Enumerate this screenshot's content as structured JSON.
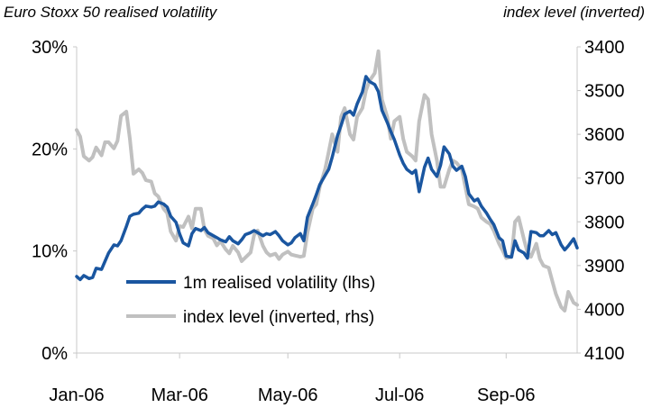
{
  "chart_data": {
    "type": "line",
    "title_left": "Euro Stoxx 50 realised volatility",
    "title_right": "index level (inverted)",
    "x_ticks": [
      "Jan-06",
      "Mar-06",
      "May-06",
      "Jul-06",
      "Sep-06"
    ],
    "y_left": {
      "ticks": [
        "0%",
        "10%",
        "20%",
        "30%"
      ],
      "range": [
        0,
        30
      ],
      "unit": "%"
    },
    "y_right": {
      "ticks": [
        "3400",
        "3500",
        "3600",
        "3700",
        "3800",
        "3900",
        "4000",
        "4100"
      ],
      "range": [
        3400,
        4100
      ],
      "inverted": true
    },
    "legend_position": "lower-left",
    "series": [
      {
        "name": "1m realised volatility (lhs)",
        "axis": "left",
        "color": "#1a56a0",
        "points": [
          [
            "2006-01-02",
            7.5
          ],
          [
            "2006-01-04",
            7.2
          ],
          [
            "2006-01-06",
            7.6
          ],
          [
            "2006-01-09",
            7.3
          ],
          [
            "2006-01-11",
            7.4
          ],
          [
            "2006-01-13",
            8.3
          ],
          [
            "2006-01-16",
            8.2
          ],
          [
            "2006-01-18",
            9.0
          ],
          [
            "2006-01-20",
            9.8
          ],
          [
            "2006-01-23",
            10.6
          ],
          [
            "2006-01-25",
            10.5
          ],
          [
            "2006-01-27",
            11.0
          ],
          [
            "2006-01-30",
            12.4
          ],
          [
            "2006-02-01",
            13.4
          ],
          [
            "2006-02-03",
            13.6
          ],
          [
            "2006-02-06",
            13.7
          ],
          [
            "2006-02-08",
            14.1
          ],
          [
            "2006-02-10",
            14.4
          ],
          [
            "2006-02-13",
            14.3
          ],
          [
            "2006-02-15",
            14.4
          ],
          [
            "2006-02-17",
            14.8
          ],
          [
            "2006-02-20",
            14.6
          ],
          [
            "2006-02-22",
            14.3
          ],
          [
            "2006-02-24",
            13.4
          ],
          [
            "2006-02-27",
            12.8
          ],
          [
            "2006-03-01",
            11.7
          ],
          [
            "2006-03-03",
            10.8
          ],
          [
            "2006-03-06",
            10.5
          ],
          [
            "2006-03-08",
            11.7
          ],
          [
            "2006-03-10",
            12.2
          ],
          [
            "2006-03-13",
            12.0
          ],
          [
            "2006-03-15",
            12.3
          ],
          [
            "2006-03-17",
            11.8
          ],
          [
            "2006-03-20",
            11.5
          ],
          [
            "2006-03-22",
            11.3
          ],
          [
            "2006-03-24",
            11.1
          ],
          [
            "2006-03-27",
            10.9
          ],
          [
            "2006-03-29",
            11.4
          ],
          [
            "2006-03-31",
            11.0
          ],
          [
            "2006-04-03",
            10.7
          ],
          [
            "2006-04-05",
            11.1
          ],
          [
            "2006-04-07",
            11.6
          ],
          [
            "2006-04-10",
            11.8
          ],
          [
            "2006-04-12",
            12.0
          ],
          [
            "2006-04-14",
            11.8
          ],
          [
            "2006-04-17",
            11.5
          ],
          [
            "2006-04-19",
            11.7
          ],
          [
            "2006-04-21",
            11.6
          ],
          [
            "2006-04-24",
            11.9
          ],
          [
            "2006-04-26",
            11.5
          ],
          [
            "2006-04-28",
            11.0
          ],
          [
            "2006-05-01",
            10.6
          ],
          [
            "2006-05-03",
            10.8
          ],
          [
            "2006-05-05",
            11.3
          ],
          [
            "2006-05-08",
            11.7
          ],
          [
            "2006-05-10",
            11.0
          ],
          [
            "2006-05-12",
            13.3
          ],
          [
            "2006-05-15",
            14.6
          ],
          [
            "2006-05-17",
            15.5
          ],
          [
            "2006-05-19",
            16.5
          ],
          [
            "2006-05-22",
            17.4
          ],
          [
            "2006-05-24",
            18.0
          ],
          [
            "2006-05-26",
            19.2
          ],
          [
            "2006-05-29",
            21.3
          ],
          [
            "2006-05-31",
            22.3
          ],
          [
            "2006-06-02",
            23.4
          ],
          [
            "2006-06-05",
            23.7
          ],
          [
            "2006-06-07",
            23.3
          ],
          [
            "2006-06-09",
            24.4
          ],
          [
            "2006-06-12",
            25.6
          ],
          [
            "2006-06-14",
            27.1
          ],
          [
            "2006-06-16",
            26.6
          ],
          [
            "2006-06-19",
            26.3
          ],
          [
            "2006-06-21",
            25.6
          ],
          [
            "2006-06-23",
            23.8
          ],
          [
            "2006-06-26",
            22.6
          ],
          [
            "2006-06-28",
            21.7
          ],
          [
            "2006-06-30",
            20.9
          ],
          [
            "2006-07-03",
            19.4
          ],
          [
            "2006-07-05",
            18.6
          ],
          [
            "2006-07-07",
            18.0
          ],
          [
            "2006-07-10",
            17.6
          ],
          [
            "2006-07-12",
            17.9
          ],
          [
            "2006-07-14",
            15.8
          ],
          [
            "2006-07-17",
            18.2
          ],
          [
            "2006-07-19",
            19.1
          ],
          [
            "2006-07-21",
            18.0
          ],
          [
            "2006-07-24",
            17.3
          ],
          [
            "2006-07-26",
            18.4
          ],
          [
            "2006-07-28",
            20.2
          ],
          [
            "2006-07-31",
            19.5
          ],
          [
            "2006-08-02",
            18.3
          ],
          [
            "2006-08-04",
            17.9
          ],
          [
            "2006-08-07",
            18.3
          ],
          [
            "2006-08-09",
            17.3
          ],
          [
            "2006-08-11",
            15.6
          ],
          [
            "2006-08-14",
            14.9
          ],
          [
            "2006-08-16",
            15.1
          ],
          [
            "2006-08-18",
            14.4
          ],
          [
            "2006-08-21",
            13.7
          ],
          [
            "2006-08-23",
            13.1
          ],
          [
            "2006-08-25",
            12.6
          ],
          [
            "2006-08-28",
            11.3
          ],
          [
            "2006-08-30",
            11.0
          ],
          [
            "2006-09-01",
            9.5
          ],
          [
            "2006-09-04",
            9.4
          ],
          [
            "2006-09-06",
            11.0
          ],
          [
            "2006-09-08",
            10.1
          ],
          [
            "2006-09-11",
            9.8
          ],
          [
            "2006-09-13",
            9.3
          ],
          [
            "2006-09-15",
            11.9
          ],
          [
            "2006-09-18",
            11.8
          ],
          [
            "2006-09-20",
            11.5
          ],
          [
            "2006-09-22",
            11.5
          ],
          [
            "2006-09-25",
            12.0
          ],
          [
            "2006-09-27",
            11.6
          ],
          [
            "2006-09-29",
            11.8
          ],
          [
            "2006-10-02",
            10.6
          ],
          [
            "2006-10-04",
            10.1
          ],
          [
            "2006-10-06",
            10.5
          ],
          [
            "2006-10-09",
            11.2
          ],
          [
            "2006-10-11",
            10.3
          ]
        ]
      },
      {
        "name": "index level (inverted, rhs)",
        "axis": "right",
        "color": "#c0c0c0",
        "points": [
          [
            "2006-01-02",
            3590
          ],
          [
            "2006-01-04",
            3605
          ],
          [
            "2006-01-06",
            3650
          ],
          [
            "2006-01-09",
            3660
          ],
          [
            "2006-01-11",
            3652
          ],
          [
            "2006-01-13",
            3630
          ],
          [
            "2006-01-16",
            3648
          ],
          [
            "2006-01-18",
            3618
          ],
          [
            "2006-01-20",
            3618
          ],
          [
            "2006-01-23",
            3632
          ],
          [
            "2006-01-25",
            3615
          ],
          [
            "2006-01-27",
            3558
          ],
          [
            "2006-01-30",
            3548
          ],
          [
            "2006-02-01",
            3610
          ],
          [
            "2006-02-03",
            3690
          ],
          [
            "2006-02-06",
            3680
          ],
          [
            "2006-02-08",
            3688
          ],
          [
            "2006-02-10",
            3705
          ],
          [
            "2006-02-13",
            3708
          ],
          [
            "2006-02-15",
            3735
          ],
          [
            "2006-02-17",
            3742
          ],
          [
            "2006-02-20",
            3770
          ],
          [
            "2006-02-22",
            3780
          ],
          [
            "2006-02-24",
            3822
          ],
          [
            "2006-02-27",
            3843
          ],
          [
            "2006-03-01",
            3810
          ],
          [
            "2006-03-03",
            3812
          ],
          [
            "2006-03-06",
            3788
          ],
          [
            "2006-03-08",
            3815
          ],
          [
            "2006-03-10",
            3770
          ],
          [
            "2006-03-13",
            3770
          ],
          [
            "2006-03-15",
            3818
          ],
          [
            "2006-03-17",
            3832
          ],
          [
            "2006-03-20",
            3838
          ],
          [
            "2006-03-22",
            3854
          ],
          [
            "2006-03-24",
            3844
          ],
          [
            "2006-03-27",
            3863
          ],
          [
            "2006-03-29",
            3872
          ],
          [
            "2006-03-31",
            3855
          ],
          [
            "2006-04-03",
            3870
          ],
          [
            "2006-04-05",
            3890
          ],
          [
            "2006-04-07",
            3882
          ],
          [
            "2006-04-10",
            3870
          ],
          [
            "2006-04-12",
            3830
          ],
          [
            "2006-04-14",
            3820
          ],
          [
            "2006-04-17",
            3855
          ],
          [
            "2006-04-19",
            3870
          ],
          [
            "2006-04-21",
            3877
          ],
          [
            "2006-04-24",
            3873
          ],
          [
            "2006-04-26",
            3885
          ],
          [
            "2006-04-28",
            3875
          ],
          [
            "2006-05-01",
            3868
          ],
          [
            "2006-05-03",
            3875
          ],
          [
            "2006-05-05",
            3877
          ],
          [
            "2006-05-08",
            3880
          ],
          [
            "2006-05-10",
            3878
          ],
          [
            "2006-05-12",
            3825
          ],
          [
            "2006-05-15",
            3770
          ],
          [
            "2006-05-17",
            3760
          ],
          [
            "2006-05-19",
            3720
          ],
          [
            "2006-05-22",
            3680
          ],
          [
            "2006-05-24",
            3640
          ],
          [
            "2006-05-26",
            3600
          ],
          [
            "2006-05-29",
            3640
          ],
          [
            "2006-05-31",
            3560
          ],
          [
            "2006-06-02",
            3540
          ],
          [
            "2006-06-05",
            3600
          ],
          [
            "2006-06-07",
            3612
          ],
          [
            "2006-06-09",
            3560
          ],
          [
            "2006-06-12",
            3540
          ],
          [
            "2006-06-14",
            3500
          ],
          [
            "2006-06-16",
            3478
          ],
          [
            "2006-06-19",
            3460
          ],
          [
            "2006-06-21",
            3410
          ],
          [
            "2006-06-23",
            3520
          ],
          [
            "2006-06-26",
            3560
          ],
          [
            "2006-06-28",
            3610
          ],
          [
            "2006-06-30",
            3570
          ],
          [
            "2006-07-03",
            3560
          ],
          [
            "2006-07-05",
            3610
          ],
          [
            "2006-07-07",
            3640
          ],
          [
            "2006-07-10",
            3650
          ],
          [
            "2006-07-12",
            3660
          ],
          [
            "2006-07-14",
            3570
          ],
          [
            "2006-07-17",
            3510
          ],
          [
            "2006-07-19",
            3520
          ],
          [
            "2006-07-21",
            3600
          ],
          [
            "2006-07-24",
            3660
          ],
          [
            "2006-07-26",
            3720
          ],
          [
            "2006-07-28",
            3720
          ],
          [
            "2006-07-31",
            3680
          ],
          [
            "2006-08-02",
            3660
          ],
          [
            "2006-08-04",
            3665
          ],
          [
            "2006-08-07",
            3680
          ],
          [
            "2006-08-09",
            3720
          ],
          [
            "2006-08-11",
            3760
          ],
          [
            "2006-08-14",
            3765
          ],
          [
            "2006-08-16",
            3770
          ],
          [
            "2006-08-18",
            3790
          ],
          [
            "2006-08-21",
            3800
          ],
          [
            "2006-08-23",
            3805
          ],
          [
            "2006-08-25",
            3820
          ],
          [
            "2006-08-28",
            3850
          ],
          [
            "2006-08-30",
            3865
          ],
          [
            "2006-09-01",
            3883
          ],
          [
            "2006-09-04",
            3880
          ],
          [
            "2006-09-06",
            3800
          ],
          [
            "2006-09-08",
            3790
          ],
          [
            "2006-09-11",
            3840
          ],
          [
            "2006-09-13",
            3870
          ],
          [
            "2006-09-15",
            3880
          ],
          [
            "2006-09-18",
            3850
          ],
          [
            "2006-09-20",
            3885
          ],
          [
            "2006-09-22",
            3900
          ],
          [
            "2006-09-25",
            3905
          ],
          [
            "2006-09-27",
            3935
          ],
          [
            "2006-09-29",
            3965
          ],
          [
            "2006-10-02",
            3995
          ],
          [
            "2006-10-04",
            4003
          ],
          [
            "2006-10-06",
            3960
          ],
          [
            "2006-10-09",
            3985
          ],
          [
            "2006-10-11",
            3990
          ]
        ]
      }
    ]
  }
}
